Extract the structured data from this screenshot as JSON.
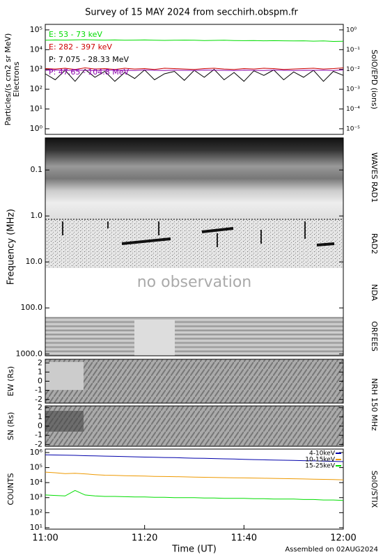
{
  "title": "Survey of 15 MAY 2024 from secchirh.obspm.fr",
  "chart_data": [
    {
      "type": "line",
      "ylabel": "Particles/(s cm2 sr MeV)",
      "ylabel2": "Electrons",
      "right_label": "SolO/EPD (ions)",
      "yscale": "log",
      "ylim": [
        0.52,
        190000
      ],
      "y2lim": [
        5.2e-06,
        1.9
      ],
      "yticks": [
        {
          "value": 1,
          "label": "10⁰"
        },
        {
          "value": 10,
          "label": "10¹"
        },
        {
          "value": 100,
          "label": "10²"
        },
        {
          "value": 1000,
          "label": "10³"
        },
        {
          "value": 10000,
          "label": "10⁴"
        },
        {
          "value": 100000,
          "label": "10⁵"
        }
      ],
      "y2ticks": [
        {
          "value": 1e-05,
          "label": "10⁻⁵"
        },
        {
          "value": 0.0001,
          "label": "10⁻⁴"
        },
        {
          "value": 0.001,
          "label": "10⁻³"
        },
        {
          "value": 0.01,
          "label": "10⁻²"
        },
        {
          "value": 0.1,
          "label": "10⁻¹"
        },
        {
          "value": 1,
          "label": "10⁰"
        }
      ],
      "xlim": [
        "11:00",
        "12:00"
      ],
      "x": [
        "11:00",
        "11:02",
        "11:04",
        "11:06",
        "11:08",
        "11:10",
        "11:12",
        "11:14",
        "11:16",
        "11:18",
        "11:20",
        "11:22",
        "11:24",
        "11:26",
        "11:28",
        "11:30",
        "11:32",
        "11:34",
        "11:36",
        "11:38",
        "11:40",
        "11:42",
        "11:44",
        "11:46",
        "11:48",
        "11:50",
        "11:52",
        "11:54",
        "11:56",
        "11:58",
        "12:00"
      ],
      "legend": "upper left",
      "series": [
        {
          "name": "E: 53 - 73 keV",
          "color": "#00dd00",
          "values": [
            30000,
            31000,
            30500,
            31500,
            32000,
            31000,
            30500,
            31000,
            30000,
            30500,
            31000,
            30000,
            29500,
            30000,
            30500,
            30000,
            29000,
            29500,
            30000,
            29000,
            28500,
            29000,
            28000,
            28500,
            28000,
            27500,
            28000,
            27000,
            27500,
            26000,
            26500
          ]
        },
        {
          "name": "E: 282 - 397 keV",
          "color": "#cc0000",
          "values": [
            1100,
            1050,
            1150,
            1000,
            1200,
            1050,
            1100,
            1000,
            1150,
            1050,
            1100,
            1000,
            1150,
            1100,
            1050,
            1000,
            1100,
            1150,
            1050,
            1000,
            1100,
            1050,
            1150,
            1100,
            1000,
            1050,
            1100,
            1150,
            1050,
            1100,
            1200
          ]
        },
        {
          "name": "P: 7.075 - 28.33 MeV",
          "color": "#000000",
          "values": [
            600,
            300,
            900,
            250,
            1000,
            400,
            800,
            250,
            700,
            350,
            950,
            300,
            600,
            800,
            280,
            900,
            400,
            1000,
            300,
            700,
            250,
            850,
            500,
            950,
            300,
            750,
            400,
            900,
            250,
            800,
            500
          ]
        },
        {
          "name": "P: 47.65 - 104.8 MeV",
          "color": "#8800aa",
          "values": [
            900,
            950,
            880,
            920,
            900,
            870,
            930,
            900,
            910,
            880,
            940,
            900,
            890,
            920,
            900,
            880,
            930,
            910,
            900,
            870,
            920,
            900,
            890,
            930,
            900,
            880,
            910,
            900,
            920,
            890,
            950
          ]
        }
      ]
    },
    {
      "type": "spectrogram",
      "ylabel": "Frequency (MHz)",
      "yscale": "log",
      "y_inverted": true,
      "ylim": [
        0.02,
        1100
      ],
      "yticks": [
        0.1,
        {
          "value": 1,
          "label": "1.0"
        },
        {
          "value": 10,
          "label": "10.0"
        },
        {
          "value": 100,
          "label": "100.0"
        },
        {
          "value": 1000,
          "label": "1000.0"
        }
      ],
      "panel_labels": [
        "WAVES RAD1",
        "RAD2",
        "NDA",
        "ORFEES"
      ],
      "annotation": "no observation"
    },
    {
      "type": "image",
      "ylabel": "EW (Rs)",
      "right_label": "NRH 150 MHz",
      "ylim": [
        -2.4,
        2.4
      ],
      "yticks": [
        -2,
        -1,
        0,
        1,
        2
      ]
    },
    {
      "type": "image",
      "ylabel": "SN (Rs)",
      "ylim": [
        -2.2,
        2.2
      ],
      "yticks": [
        -2,
        -1,
        0,
        1,
        2
      ]
    },
    {
      "type": "line",
      "ylabel": "COUNTS",
      "right_label": "SolO/STIX",
      "yscale": "log",
      "ylim": [
        8,
        1700000
      ],
      "yticks": [
        {
          "value": 10,
          "label": "10¹"
        },
        {
          "value": 100,
          "label": "10²"
        },
        {
          "value": 1000,
          "label": "10³"
        },
        {
          "value": 10000,
          "label": "10⁴"
        },
        {
          "value": 100000,
          "label": "10⁵"
        },
        {
          "value": 1000000,
          "label": "10⁶"
        }
      ],
      "xlim": [
        "11:00",
        "12:00"
      ],
      "xticks": [
        "11:00",
        "11:20",
        "11:40",
        "12:00"
      ],
      "xlabel": "Time (UT)",
      "note": "Assembled on 02AUG2024",
      "x": [
        "11:00",
        "11:02",
        "11:04",
        "11:06",
        "11:08",
        "11:10",
        "11:12",
        "11:14",
        "11:16",
        "11:18",
        "11:20",
        "11:22",
        "11:24",
        "11:26",
        "11:28",
        "11:30",
        "11:32",
        "11:34",
        "11:36",
        "11:38",
        "11:40",
        "11:42",
        "11:44",
        "11:46",
        "11:48",
        "11:50",
        "11:52",
        "11:54",
        "11:56",
        "11:58",
        "12:00"
      ],
      "legend": "upper right",
      "series": [
        {
          "name": "4-10keV",
          "color": "#0000aa",
          "values": [
            700000,
            690000,
            670000,
            650000,
            620000,
            600000,
            580000,
            560000,
            540000,
            520000,
            500000,
            490000,
            470000,
            460000,
            440000,
            420000,
            410000,
            400000,
            380000,
            370000,
            350000,
            340000,
            330000,
            320000,
            310000,
            300000,
            290000,
            280000,
            270000,
            260000,
            250000
          ]
        },
        {
          "name": "10-15keV",
          "color": "#ee9900",
          "values": [
            50000,
            45000,
            40000,
            42000,
            38000,
            34000,
            31000,
            30000,
            29000,
            28000,
            27000,
            26000,
            25500,
            25000,
            24000,
            23000,
            22500,
            22000,
            21500,
            21000,
            20500,
            20000,
            19500,
            19000,
            18500,
            18000,
            17500,
            17000,
            16500,
            16000,
            15000
          ]
        },
        {
          "name": "15-25keV",
          "color": "#00dd00",
          "values": [
            1500,
            1400,
            1300,
            3000,
            1500,
            1300,
            1200,
            1200,
            1150,
            1100,
            1100,
            1050,
            1050,
            1000,
            1000,
            1000,
            950,
            950,
            900,
            900,
            900,
            850,
            850,
            800,
            800,
            800,
            750,
            750,
            700,
            700,
            650
          ]
        }
      ]
    }
  ]
}
